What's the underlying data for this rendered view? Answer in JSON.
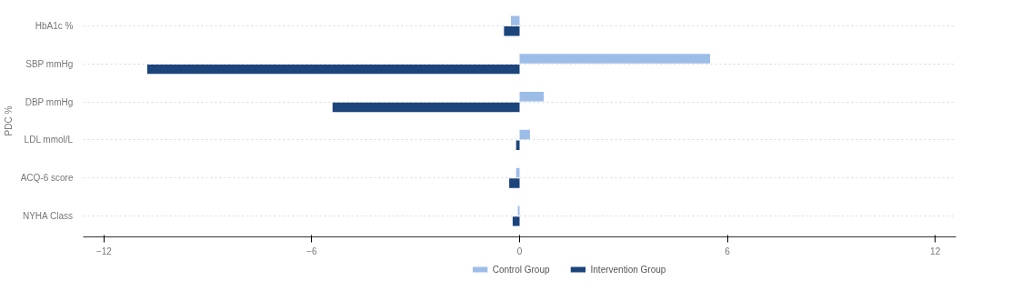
{
  "chart_data": {
    "type": "bar",
    "orientation": "horizontal",
    "ylabel": "PDC %",
    "categories": [
      "HbA1c %",
      "SBP mmHg",
      "DBP mmHg",
      "LDL mmol/L",
      "ACQ-6 score",
      "NYHA Class"
    ],
    "series": [
      {
        "name": "Control Group",
        "color": "#9dbde9",
        "values": [
          -0.25,
          5.5,
          0.7,
          0.3,
          -0.1,
          -0.05
        ]
      },
      {
        "name": "Intervention Group",
        "color": "#1c457c",
        "values": [
          -0.45,
          -10.75,
          -5.4,
          -0.1,
          -0.3,
          -0.2
        ]
      }
    ],
    "xlim": [
      -12.6,
      12.6
    ],
    "xticks": [
      -12,
      -6,
      0,
      6,
      12
    ],
    "grid": "y",
    "legend": "bottom"
  }
}
